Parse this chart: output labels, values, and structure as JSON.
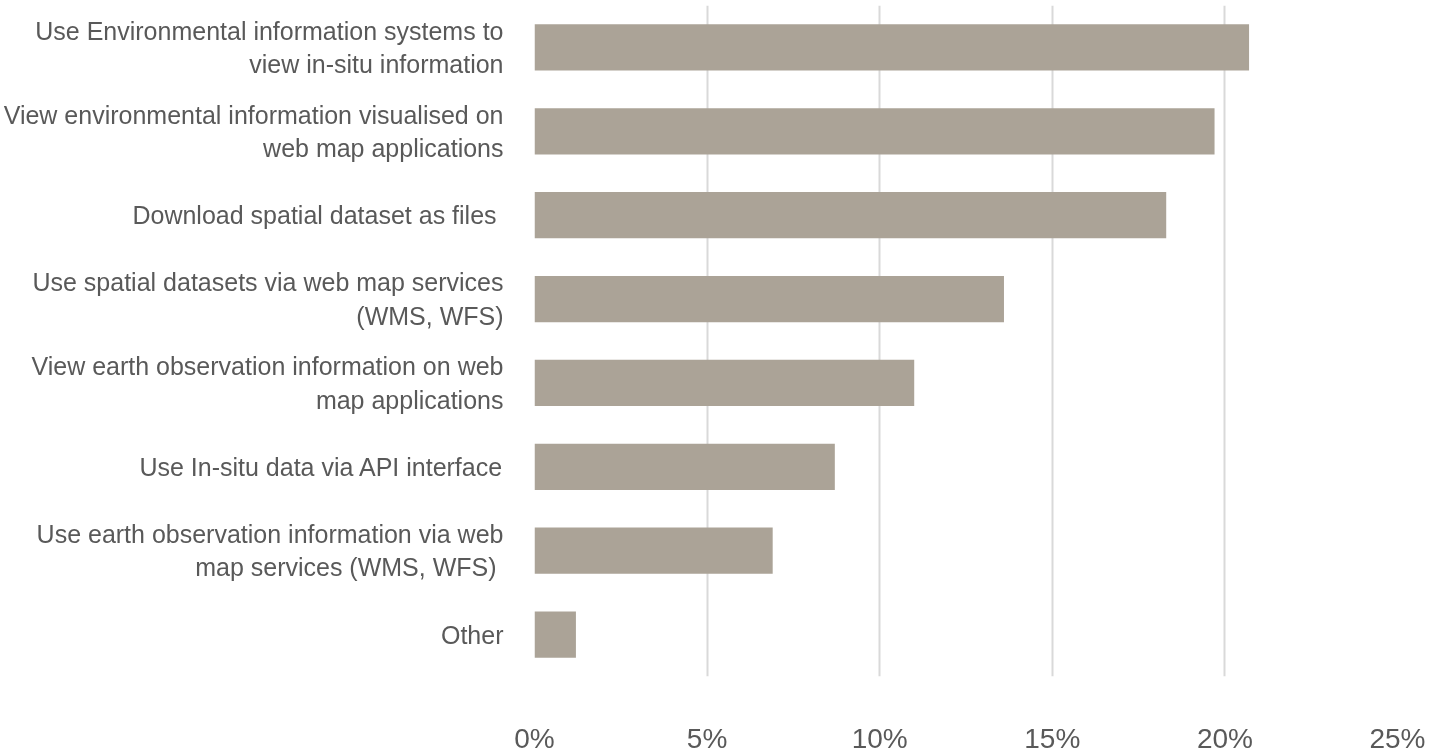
{
  "chart_data": {
    "type": "bar",
    "orientation": "horizontal",
    "categories": [
      "Use Environmental information systems to view in-situ information",
      "View environmental information visualised on web map applications",
      "Download spatial dataset as  files",
      "Use spatial datasets via web map services (WMS, WFS)",
      "View earth observation information on web map applications",
      "Use In-situ data via API interface",
      "Use earth observation information via web map services  (WMS, WFS)",
      "Other"
    ],
    "values": [
      20.7,
      19.7,
      18.3,
      13.6,
      11.0,
      8.7,
      6.9,
      1.2
    ],
    "color": "#aba397",
    "xlim": [
      0,
      25
    ],
    "xticks": [
      {
        "value": 0,
        "label": "0%"
      },
      {
        "value": 5,
        "label": "5%"
      },
      {
        "value": 10,
        "label": "10%"
      },
      {
        "value": 15,
        "label": "15%"
      },
      {
        "value": 20,
        "label": "20%"
      },
      {
        "value": 25,
        "label": "25%"
      }
    ],
    "grid": "x"
  }
}
